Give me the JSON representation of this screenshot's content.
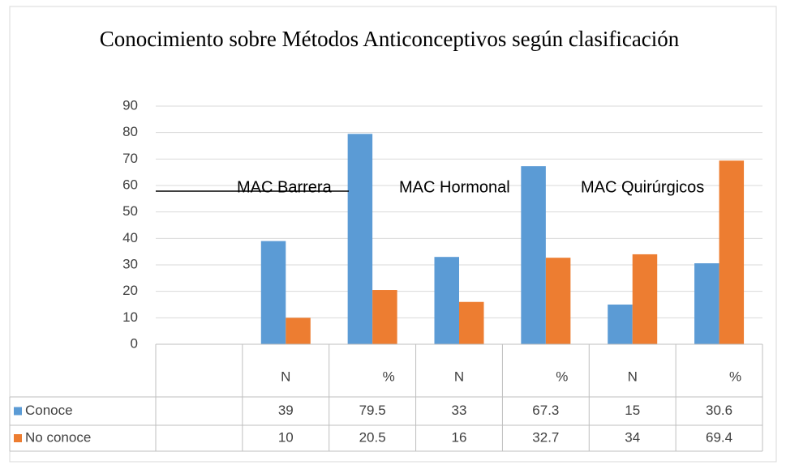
{
  "chart_data": {
    "type": "bar",
    "title": "Conocimiento sobre Métodos Anticonceptivos según clasificación",
    "categories": [
      null,
      "N",
      "%",
      "N",
      "%",
      "N",
      "%"
    ],
    "series": [
      {
        "name": "Conoce",
        "color": "#5b9bd5",
        "values": [
          null,
          39,
          79.5,
          33,
          67.3,
          15,
          30.6
        ]
      },
      {
        "name": "No conoce",
        "color": "#ed7d31",
        "values": [
          null,
          10,
          20.5,
          16,
          32.7,
          34,
          69.4
        ]
      }
    ],
    "annotations": [
      "MAC Barrera",
      "MAC Hormonal",
      "MAC Quirúrgicos"
    ],
    "ylim": [
      0,
      90
    ],
    "yticks": [
      0,
      10,
      20,
      30,
      40,
      50,
      60,
      70,
      80,
      90
    ],
    "grid": true
  }
}
